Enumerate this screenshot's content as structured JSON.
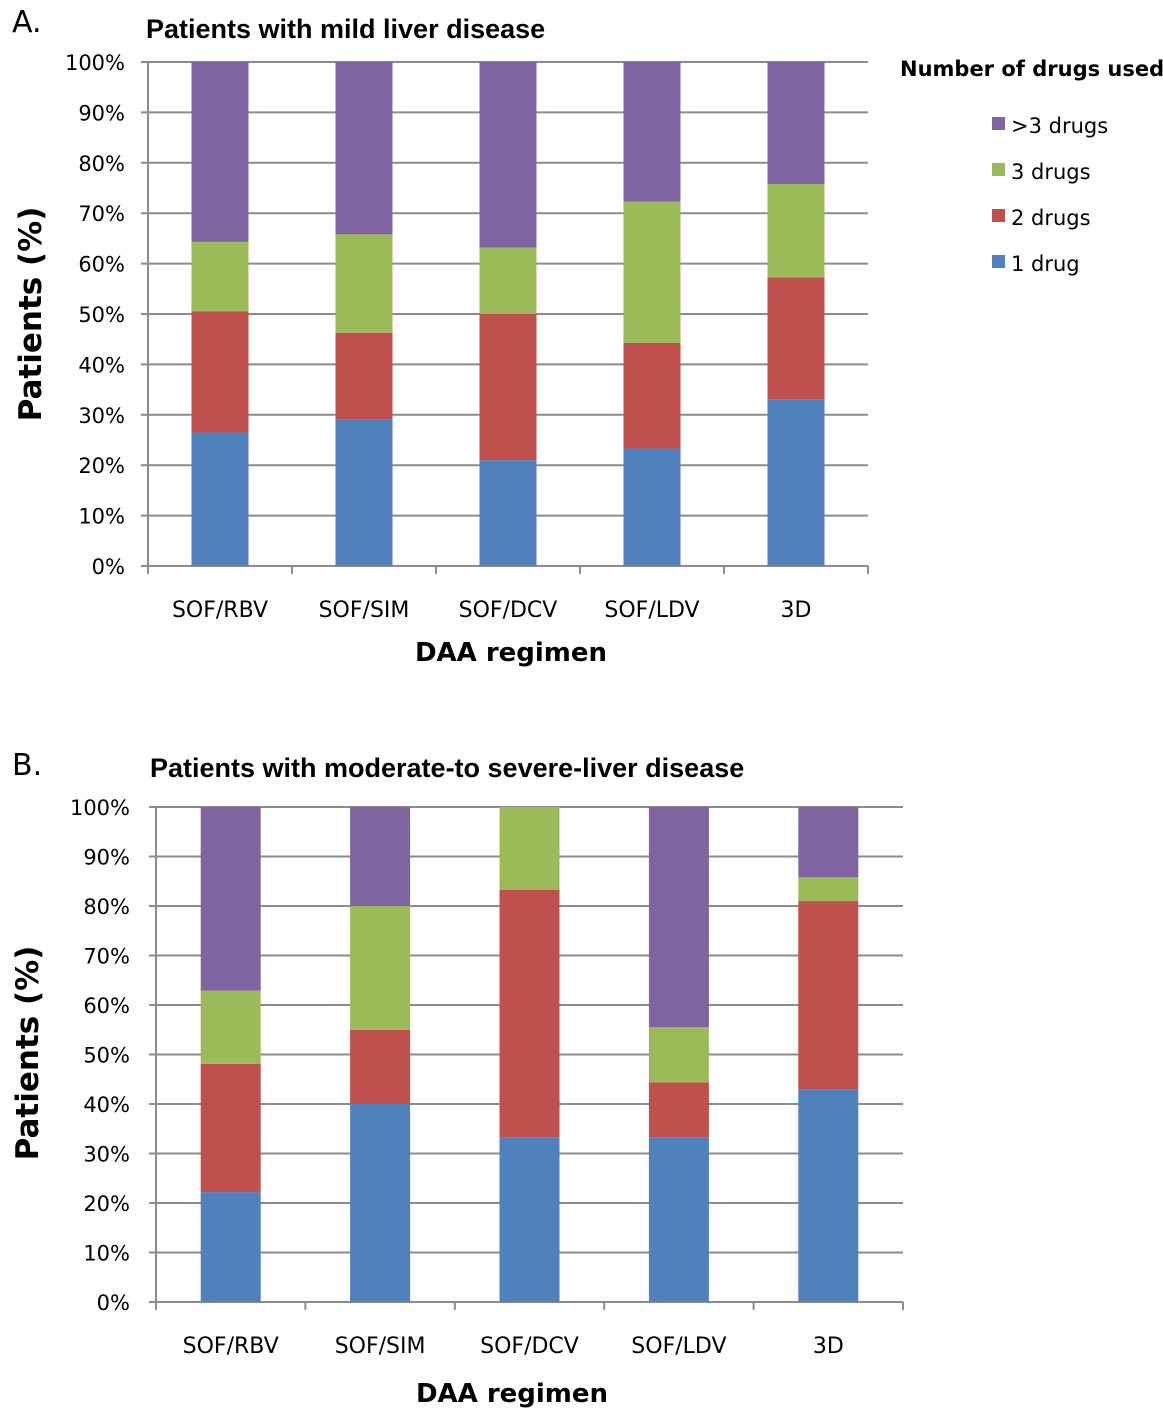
{
  "colors": {
    "one_drug": "#4f81bd",
    "two_drugs": "#c0504d",
    "three_drugs": "#9bbb59",
    "more_than_three": "#8064a2"
  },
  "legend": {
    "title": "Number of drugs used",
    "items": [
      ">3 drugs",
      "3 drugs",
      "2 drugs",
      "1 drug"
    ]
  },
  "chart_data": [
    {
      "type": "bar",
      "stacked": true,
      "panel": "A.",
      "title": "Patients with mild liver disease",
      "xlabel": "DAA regimen",
      "ylabel": "Patients (%)",
      "ylim": [
        0,
        100
      ],
      "yticks": [
        "0%",
        "10%",
        "20%",
        "30%",
        "40%",
        "50%",
        "60%",
        "70%",
        "80%",
        "90%",
        "100%"
      ],
      "grid": true,
      "categories": [
        "SOF/RBV",
        "SOF/SIM",
        "SOF/DCV",
        "SOF/LDV",
        "3D"
      ],
      "series": [
        {
          "name": "1 drug",
          "values": [
            26.5,
            29,
            21,
            23.3,
            33
          ]
        },
        {
          "name": "2 drugs",
          "values": [
            24,
            17.3,
            29,
            21,
            24.3
          ]
        },
        {
          "name": "3 drugs",
          "values": [
            13.8,
            19.5,
            13.2,
            28,
            18.5
          ]
        },
        {
          "name": ">3 drugs",
          "values": [
            35.7,
            34.2,
            36.8,
            27.7,
            24.2
          ]
        }
      ]
    },
    {
      "type": "bar",
      "stacked": true,
      "panel": "B.",
      "title": "Patients with moderate-to severe-liver disease",
      "xlabel": "DAA regimen",
      "ylabel": "Patients (%)",
      "ylim": [
        0,
        100
      ],
      "yticks": [
        "0%",
        "10%",
        "20%",
        "30%",
        "40%",
        "50%",
        "60%",
        "70%",
        "80%",
        "90%",
        "100%"
      ],
      "grid": true,
      "categories": [
        "SOF/RBV",
        "SOF/SIM",
        "SOF/DCV",
        "SOF/LDV",
        "3D"
      ],
      "series": [
        {
          "name": "1 drug",
          "values": [
            22.2,
            40,
            33.3,
            33.3,
            42.9
          ]
        },
        {
          "name": "2 drugs",
          "values": [
            25.9,
            15,
            50,
            11.1,
            38.1
          ]
        },
        {
          "name": "3 drugs",
          "values": [
            14.8,
            25,
            16.7,
            11.1,
            4.8
          ]
        },
        {
          "name": ">3 drugs",
          "values": [
            37.1,
            20,
            0,
            44.5,
            14.2
          ]
        }
      ]
    }
  ]
}
